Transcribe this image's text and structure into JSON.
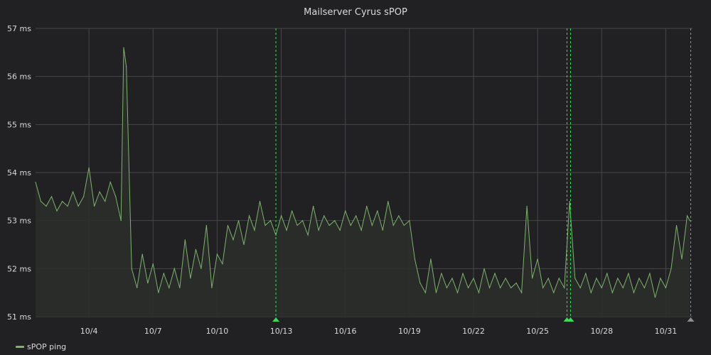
{
  "chart_data": {
    "type": "line",
    "title": "Mailserver Cyrus sPOP",
    "ylabel": "",
    "xlabel": "",
    "y_unit": "ms",
    "ylim": [
      51,
      57
    ],
    "y_ticks": [
      {
        "value": 57,
        "label": "57 ms"
      },
      {
        "value": 56,
        "label": "56 ms"
      },
      {
        "value": 55,
        "label": "55 ms"
      },
      {
        "value": 54,
        "label": "54 ms"
      },
      {
        "value": 53,
        "label": "53 ms"
      },
      {
        "value": 52,
        "label": "52 ms"
      },
      {
        "value": 51,
        "label": "51 ms"
      }
    ],
    "xlim": [
      "10/1 12:00",
      "11/1 06:00"
    ],
    "x_ticks": [
      {
        "value": "10/4",
        "label": "10/4"
      },
      {
        "value": "10/7",
        "label": "10/7"
      },
      {
        "value": "10/10",
        "label": "10/10"
      },
      {
        "value": "10/13",
        "label": "10/13"
      },
      {
        "value": "10/16",
        "label": "10/16"
      },
      {
        "value": "10/19",
        "label": "10/19"
      },
      {
        "value": "10/22",
        "label": "10/22"
      },
      {
        "value": "10/25",
        "label": "10/25"
      },
      {
        "value": "10/28",
        "label": "10/28"
      },
      {
        "value": "10/31",
        "label": "10/31"
      }
    ],
    "grid": true,
    "legend_position": "bottom-left",
    "series": [
      {
        "name": "sPOP ping",
        "color": "#7eb26d",
        "fill": true,
        "points": [
          [
            "10/1 12:00",
            53.8
          ],
          [
            "10/1 18:00",
            53.4
          ],
          [
            "10/2 00:00",
            53.3
          ],
          [
            "10/2 06:00",
            53.5
          ],
          [
            "10/2 12:00",
            53.2
          ],
          [
            "10/2 18:00",
            53.4
          ],
          [
            "10/3 00:00",
            53.3
          ],
          [
            "10/3 06:00",
            53.6
          ],
          [
            "10/3 12:00",
            53.3
          ],
          [
            "10/3 18:00",
            53.5
          ],
          [
            "10/4 00:00",
            54.1
          ],
          [
            "10/4 06:00",
            53.3
          ],
          [
            "10/4 12:00",
            53.6
          ],
          [
            "10/4 18:00",
            53.4
          ],
          [
            "10/5 00:00",
            53.8
          ],
          [
            "10/5 06:00",
            53.5
          ],
          [
            "10/5 12:00",
            53.0
          ],
          [
            "10/5 15:00",
            56.6
          ],
          [
            "10/5 18:00",
            56.2
          ],
          [
            "10/6 00:00",
            52.0
          ],
          [
            "10/6 06:00",
            51.6
          ],
          [
            "10/6 12:00",
            52.3
          ],
          [
            "10/6 18:00",
            51.7
          ],
          [
            "10/7 00:00",
            52.1
          ],
          [
            "10/7 06:00",
            51.5
          ],
          [
            "10/7 12:00",
            51.9
          ],
          [
            "10/7 18:00",
            51.6
          ],
          [
            "10/8 00:00",
            52.0
          ],
          [
            "10/8 06:00",
            51.6
          ],
          [
            "10/8 12:00",
            52.6
          ],
          [
            "10/8 18:00",
            51.8
          ],
          [
            "10/9 00:00",
            52.4
          ],
          [
            "10/9 06:00",
            52.0
          ],
          [
            "10/9 12:00",
            52.9
          ],
          [
            "10/9 18:00",
            51.6
          ],
          [
            "10/10 00:00",
            52.3
          ],
          [
            "10/10 06:00",
            52.1
          ],
          [
            "10/10 12:00",
            52.9
          ],
          [
            "10/10 18:00",
            52.6
          ],
          [
            "10/11 00:00",
            53.0
          ],
          [
            "10/11 06:00",
            52.5
          ],
          [
            "10/11 12:00",
            53.1
          ],
          [
            "10/11 18:00",
            52.8
          ],
          [
            "10/12 00:00",
            53.4
          ],
          [
            "10/12 06:00",
            52.9
          ],
          [
            "10/12 12:00",
            53.0
          ],
          [
            "10/12 18:00",
            52.7
          ],
          [
            "10/13 00:00",
            53.1
          ],
          [
            "10/13 06:00",
            52.8
          ],
          [
            "10/13 12:00",
            53.2
          ],
          [
            "10/13 18:00",
            52.9
          ],
          [
            "10/14 00:00",
            53.0
          ],
          [
            "10/14 06:00",
            52.7
          ],
          [
            "10/14 12:00",
            53.3
          ],
          [
            "10/14 18:00",
            52.8
          ],
          [
            "10/15 00:00",
            53.1
          ],
          [
            "10/15 06:00",
            52.9
          ],
          [
            "10/15 12:00",
            53.0
          ],
          [
            "10/15 18:00",
            52.8
          ],
          [
            "10/16 00:00",
            53.2
          ],
          [
            "10/16 06:00",
            52.9
          ],
          [
            "10/16 12:00",
            53.1
          ],
          [
            "10/16 18:00",
            52.8
          ],
          [
            "10/17 00:00",
            53.3
          ],
          [
            "10/17 06:00",
            52.9
          ],
          [
            "10/17 12:00",
            53.2
          ],
          [
            "10/17 18:00",
            52.8
          ],
          [
            "10/18 00:00",
            53.4
          ],
          [
            "10/18 06:00",
            52.9
          ],
          [
            "10/18 12:00",
            53.1
          ],
          [
            "10/18 18:00",
            52.9
          ],
          [
            "10/19 00:00",
            53.0
          ],
          [
            "10/19 06:00",
            52.2
          ],
          [
            "10/19 12:00",
            51.7
          ],
          [
            "10/19 18:00",
            51.5
          ],
          [
            "10/20 00:00",
            52.2
          ],
          [
            "10/20 06:00",
            51.5
          ],
          [
            "10/20 12:00",
            51.9
          ],
          [
            "10/20 18:00",
            51.6
          ],
          [
            "10/21 00:00",
            51.8
          ],
          [
            "10/21 06:00",
            51.5
          ],
          [
            "10/21 12:00",
            51.9
          ],
          [
            "10/21 18:00",
            51.6
          ],
          [
            "10/22 00:00",
            51.8
          ],
          [
            "10/22 06:00",
            51.5
          ],
          [
            "10/22 12:00",
            52.0
          ],
          [
            "10/22 18:00",
            51.6
          ],
          [
            "10/23 00:00",
            51.9
          ],
          [
            "10/23 06:00",
            51.6
          ],
          [
            "10/23 12:00",
            51.8
          ],
          [
            "10/23 18:00",
            51.6
          ],
          [
            "10/24 00:00",
            51.7
          ],
          [
            "10/24 06:00",
            51.5
          ],
          [
            "10/24 12:00",
            53.3
          ],
          [
            "10/24 18:00",
            51.8
          ],
          [
            "10/25 00:00",
            52.2
          ],
          [
            "10/25 06:00",
            51.6
          ],
          [
            "10/25 12:00",
            51.8
          ],
          [
            "10/25 18:00",
            51.5
          ],
          [
            "10/26 00:00",
            51.8
          ],
          [
            "10/26 06:00",
            51.6
          ],
          [
            "10/26 12:00",
            53.4
          ],
          [
            "10/26 18:00",
            51.8
          ],
          [
            "10/27 00:00",
            51.6
          ],
          [
            "10/27 06:00",
            51.9
          ],
          [
            "10/27 12:00",
            51.5
          ],
          [
            "10/27 18:00",
            51.8
          ],
          [
            "10/28 00:00",
            51.6
          ],
          [
            "10/28 06:00",
            51.9
          ],
          [
            "10/28 12:00",
            51.5
          ],
          [
            "10/28 18:00",
            51.8
          ],
          [
            "10/29 00:00",
            51.6
          ],
          [
            "10/29 06:00",
            51.9
          ],
          [
            "10/29 12:00",
            51.5
          ],
          [
            "10/29 18:00",
            51.8
          ],
          [
            "10/30 00:00",
            51.6
          ],
          [
            "10/30 06:00",
            51.9
          ],
          [
            "10/30 12:00",
            51.4
          ],
          [
            "10/30 18:00",
            51.8
          ],
          [
            "10/31 00:00",
            51.6
          ],
          [
            "10/31 06:00",
            52.0
          ],
          [
            "10/31 12:00",
            52.9
          ],
          [
            "10/31 18:00",
            52.2
          ],
          [
            "11/1 00:00",
            53.1
          ],
          [
            "11/1 03:00",
            53.0
          ]
        ]
      }
    ],
    "annotations": [
      {
        "time": "10/12 18:00",
        "color": "#3cdc5a"
      },
      {
        "time": "10/26 09:00",
        "color": "#3cdc5a"
      },
      {
        "time": "10/26 13:00",
        "color": "#3cdc5a"
      },
      {
        "time": "11/1 04:00",
        "color": "#8e8e8e"
      }
    ]
  },
  "colors": {
    "background": "#212124",
    "grid": "#464649",
    "series_line": "#7eb26d",
    "series_fill": "#2a2d2a",
    "annotation": "#3cdc5a",
    "annotation_end": "#8e8e8e"
  }
}
